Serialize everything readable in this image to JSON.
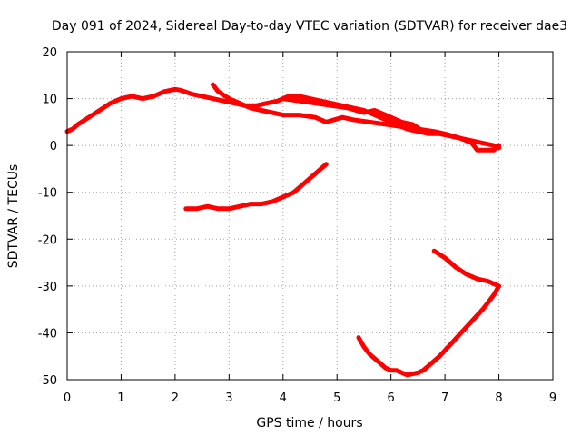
{
  "chart_data": {
    "type": "line",
    "title": "Day 091 of 2024, Sidereal Day-to-day VTEC variation (SDTVAR) for receiver dae3",
    "xlabel": "GPS time / hours",
    "ylabel": "SDTVAR / TECUs",
    "xlim": [
      0,
      9
    ],
    "ylim": [
      -50,
      20
    ],
    "xticks": [
      "0",
      "1",
      "2",
      "3",
      "4",
      "5",
      "6",
      "7",
      "8",
      "9"
    ],
    "yticks": [
      "-50",
      "-40",
      "-30",
      "-20",
      "-10",
      "0",
      "10",
      "20"
    ],
    "grid": true,
    "line_color": "#ff0000",
    "series": [
      {
        "values_xy": [
          [
            0.0,
            3.0
          ],
          [
            0.1,
            3.5
          ],
          [
            0.2,
            4.5
          ],
          [
            0.4,
            6.0
          ],
          [
            0.6,
            7.5
          ],
          [
            0.8,
            9.0
          ],
          [
            1.0,
            10.0
          ],
          [
            1.2,
            10.5
          ],
          [
            1.4,
            10.0
          ],
          [
            1.6,
            10.5
          ],
          [
            1.8,
            11.5
          ],
          [
            2.0,
            12.0
          ],
          [
            2.1,
            11.8
          ],
          [
            2.3,
            11.0
          ],
          [
            2.5,
            10.5
          ],
          [
            2.7,
            10.0
          ],
          [
            2.9,
            9.5
          ],
          [
            3.1,
            9.0
          ],
          [
            3.3,
            8.5
          ],
          [
            3.5,
            8.5
          ],
          [
            3.7,
            9.0
          ],
          [
            3.9,
            9.5
          ],
          [
            4.1,
            10.5
          ],
          [
            4.3,
            10.5
          ],
          [
            4.5,
            10.0
          ],
          [
            4.7,
            9.5
          ],
          [
            4.9,
            9.0
          ],
          [
            5.1,
            8.5
          ],
          [
            5.3,
            8.0
          ],
          [
            5.5,
            7.5
          ],
          [
            5.7,
            6.5
          ],
          [
            5.9,
            5.5
          ],
          [
            6.1,
            4.5
          ],
          [
            6.3,
            3.5
          ],
          [
            6.5,
            3.0
          ],
          [
            6.7,
            2.5
          ],
          [
            6.9,
            2.5
          ],
          [
            7.1,
            2.0
          ],
          [
            7.3,
            1.5
          ],
          [
            7.5,
            1.0
          ],
          [
            7.7,
            0.5
          ],
          [
            7.9,
            0.0
          ],
          [
            8.0,
            -0.5
          ]
        ]
      },
      {
        "values_xy": [
          [
            2.7,
            13.0
          ],
          [
            2.8,
            11.5
          ],
          [
            3.0,
            10.0
          ],
          [
            3.2,
            9.0
          ],
          [
            3.4,
            8.0
          ],
          [
            3.6,
            7.5
          ],
          [
            3.8,
            7.0
          ],
          [
            4.0,
            6.5
          ],
          [
            4.3,
            6.5
          ],
          [
            4.6,
            6.0
          ],
          [
            4.8,
            5.0
          ],
          [
            5.1,
            6.0
          ],
          [
            5.3,
            5.5
          ],
          [
            5.6,
            5.0
          ],
          [
            5.9,
            4.5
          ],
          [
            6.2,
            4.0
          ],
          [
            6.5,
            3.5
          ],
          [
            6.8,
            3.0
          ],
          [
            7.0,
            2.5
          ],
          [
            7.3,
            1.5
          ],
          [
            7.5,
            0.5
          ],
          [
            7.6,
            -1.0
          ],
          [
            7.9,
            -1.0
          ],
          [
            8.0,
            0.0
          ]
        ]
      },
      {
        "values_xy": [
          [
            4.0,
            10.0
          ],
          [
            4.3,
            9.5
          ],
          [
            4.6,
            9.0
          ],
          [
            4.9,
            8.5
          ],
          [
            5.2,
            8.0
          ],
          [
            5.5,
            7.0
          ],
          [
            5.7,
            7.5
          ],
          [
            5.9,
            6.5
          ],
          [
            6.2,
            5.0
          ],
          [
            6.4,
            4.5
          ],
          [
            6.6,
            3.0
          ]
        ]
      },
      {
        "values_xy": [
          [
            2.2,
            -13.5
          ],
          [
            2.4,
            -13.5
          ],
          [
            2.6,
            -13.0
          ],
          [
            2.8,
            -13.5
          ],
          [
            3.0,
            -13.5
          ],
          [
            3.2,
            -13.0
          ],
          [
            3.4,
            -12.5
          ],
          [
            3.6,
            -12.5
          ],
          [
            3.8,
            -12.0
          ],
          [
            4.0,
            -11.0
          ],
          [
            4.2,
            -10.0
          ],
          [
            4.4,
            -8.0
          ],
          [
            4.6,
            -6.0
          ],
          [
            4.8,
            -4.0
          ]
        ]
      },
      {
        "values_xy": [
          [
            5.4,
            -41.0
          ],
          [
            5.5,
            -43.0
          ],
          [
            5.6,
            -44.5
          ],
          [
            5.7,
            -45.5
          ],
          [
            5.8,
            -46.5
          ],
          [
            5.9,
            -47.5
          ],
          [
            6.0,
            -48.0
          ],
          [
            6.1,
            -48.0
          ],
          [
            6.2,
            -48.5
          ],
          [
            6.3,
            -49.0
          ],
          [
            6.5,
            -48.5
          ],
          [
            6.6,
            -48.0
          ],
          [
            6.7,
            -47.0
          ],
          [
            6.9,
            -45.0
          ],
          [
            7.1,
            -42.5
          ],
          [
            7.3,
            -40.0
          ],
          [
            7.5,
            -37.5
          ],
          [
            7.7,
            -35.0
          ],
          [
            7.9,
            -32.0
          ],
          [
            8.0,
            -30.0
          ],
          [
            7.8,
            -29.0
          ],
          [
            7.6,
            -28.5
          ],
          [
            7.4,
            -27.5
          ],
          [
            7.2,
            -26.0
          ],
          [
            7.0,
            -24.0
          ],
          [
            6.8,
            -22.5
          ]
        ]
      }
    ]
  }
}
